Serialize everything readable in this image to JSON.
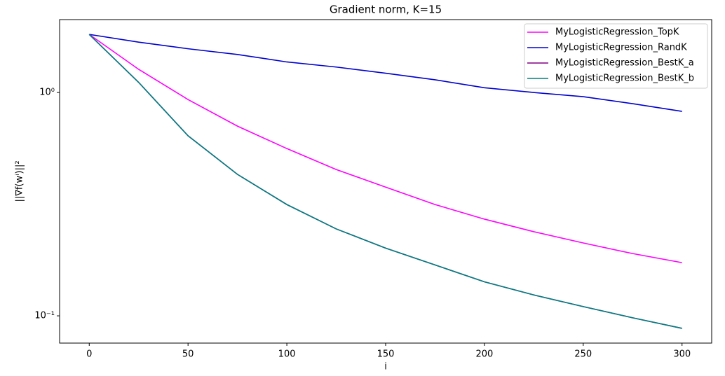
{
  "chart_data": {
    "type": "line",
    "title": "Gradient norm, K=15",
    "x_label": "i",
    "y_label": "||∇f(wⁱ)||²",
    "x": [
      0,
      25,
      50,
      75,
      100,
      125,
      150,
      175,
      200,
      225,
      250,
      275,
      300
    ],
    "series": [
      {
        "name": "MyLogisticRegression_TopK",
        "color": "#ff00ff",
        "values": [
          1.82,
          1.27,
          0.93,
          0.707,
          0.561,
          0.452,
          0.377,
          0.315,
          0.271,
          0.238,
          0.212,
          0.19,
          0.173
        ]
      },
      {
        "name": "MyLogisticRegression_RandK",
        "color": "#0000cd",
        "values": [
          1.82,
          1.68,
          1.57,
          1.48,
          1.37,
          1.3,
          1.22,
          1.14,
          1.05,
          1.0,
          0.958,
          0.891,
          0.823
        ]
      },
      {
        "name": "MyLogisticRegression_BestK_a",
        "color": "#800080",
        "values": [
          1.82,
          1.11,
          0.64,
          0.43,
          0.315,
          0.245,
          0.201,
          0.169,
          0.142,
          0.124,
          0.11,
          0.098,
          0.0879
        ]
      },
      {
        "name": "MyLogisticRegression_BestK_b",
        "color": "#008080",
        "values": [
          1.82,
          1.11,
          0.64,
          0.43,
          0.315,
          0.245,
          0.201,
          0.169,
          0.142,
          0.124,
          0.11,
          0.098,
          0.0879
        ]
      }
    ],
    "xlim": [
      -15,
      315
    ],
    "xticks": [
      0,
      50,
      100,
      150,
      200,
      250,
      300
    ],
    "ylim": [
      0.0755,
      2.12
    ],
    "yscale": "log",
    "yticks": [
      {
        "value": 0.1,
        "label": "10⁻¹"
      },
      {
        "value": 1,
        "label": "10⁰"
      }
    ],
    "legend": "upper right"
  }
}
